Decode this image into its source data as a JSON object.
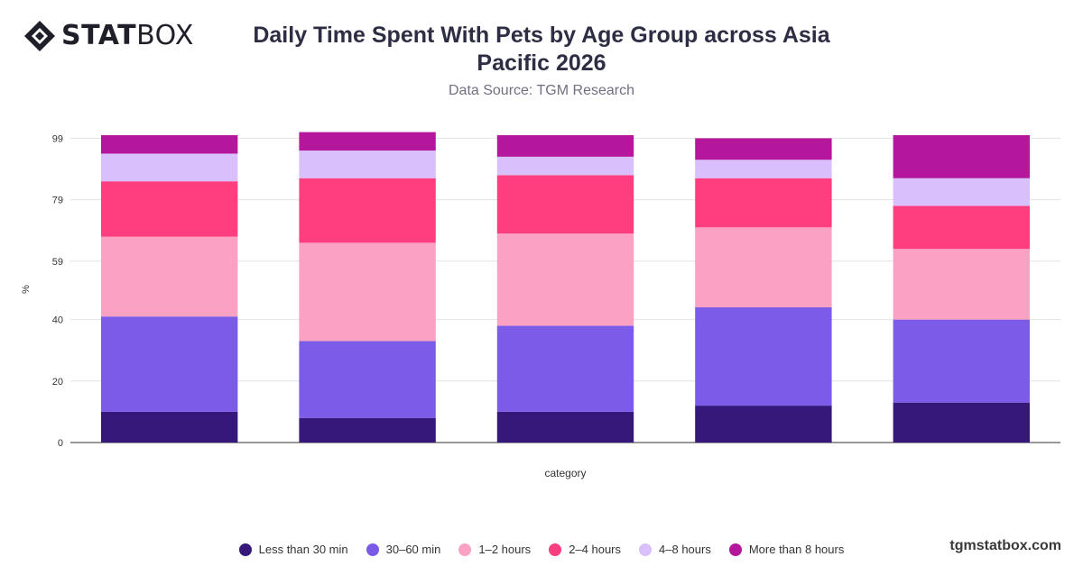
{
  "brand": {
    "logo_bold": "STAT",
    "logo_light": "BOX",
    "watermark": "tgmstatbox.com"
  },
  "header": {
    "title": "Daily Time Spent With Pets by Age Group across Asia Pacific 2026",
    "subtitle": "Data Source: TGM Research"
  },
  "chart_data": {
    "type": "bar",
    "stacked": true,
    "title": "Daily Time Spent With Pets by Age Group across Asia Pacific 2026",
    "subtitle": "Data Source: TGM Research",
    "xlabel": "category",
    "ylabel": "%",
    "ylim": [
      0,
      100
    ],
    "yticks": [
      0,
      20,
      40,
      59,
      79,
      99
    ],
    "grid": true,
    "legend_position": "bottom",
    "categories": [
      "",
      "",
      "",
      "",
      ""
    ],
    "series": [
      {
        "name": "Less than 30 min",
        "color": "#35187a",
        "values": [
          10,
          8,
          10,
          12,
          13
        ]
      },
      {
        "name": "30–60 min",
        "color": "#7b5ce9",
        "values": [
          31,
          25,
          28,
          32,
          27
        ]
      },
      {
        "name": "1–2 hours",
        "color": "#fba1c4",
        "values": [
          26,
          32,
          30,
          26,
          23
        ]
      },
      {
        "name": "2–4 hours",
        "color": "#fe3e7f",
        "values": [
          18,
          21,
          19,
          16,
          14
        ]
      },
      {
        "name": "4–8 hours",
        "color": "#d9bffb",
        "values": [
          9,
          9,
          6,
          6,
          9
        ]
      },
      {
        "name": "More than 8 hours",
        "color": "#b4179c",
        "values": [
          6,
          6,
          7,
          7,
          14
        ]
      }
    ]
  }
}
